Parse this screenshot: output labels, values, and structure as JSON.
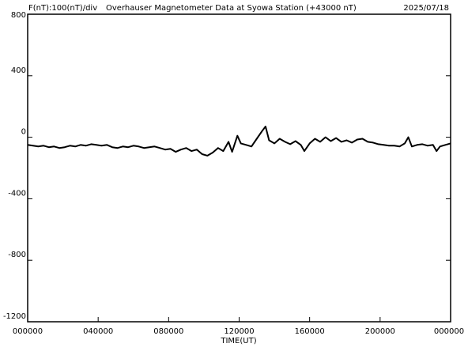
{
  "chart_data": {
    "type": "line",
    "title_left": "F(nT):100(nT)/div",
    "title": "Overhauser Magnetometer Data at Syowa Station (+43000 nT)",
    "date": "2025/07/18",
    "x_label": "TIME(UT)",
    "color": "#000000",
    "xlim": [
      0,
      24
    ],
    "xticks": [
      {
        "value": 0,
        "label": "000000"
      },
      {
        "value": 4,
        "label": "040000"
      },
      {
        "value": 8,
        "label": "080000"
      },
      {
        "value": 12,
        "label": "120000"
      },
      {
        "value": 16,
        "label": "160000"
      },
      {
        "value": 20,
        "label": "200000"
      },
      {
        "value": 24,
        "label": "000000"
      }
    ],
    "ylim": [
      -1200,
      800
    ],
    "yticks": [
      -1200,
      -800,
      -400,
      0,
      400,
      800
    ],
    "x": [
      0,
      0.3,
      0.6,
      0.9,
      1.2,
      1.5,
      1.8,
      2.1,
      2.4,
      2.7,
      3.0,
      3.3,
      3.6,
      3.9,
      4.2,
      4.5,
      4.8,
      5.1,
      5.4,
      5.7,
      6.0,
      6.3,
      6.6,
      6.9,
      7.2,
      7.5,
      7.8,
      8.1,
      8.4,
      8.7,
      9.0,
      9.3,
      9.6,
      9.9,
      10.2,
      10.5,
      10.8,
      11.1,
      11.4,
      11.6,
      11.9,
      12.1,
      12.4,
      12.7,
      13.0,
      13.3,
      13.5,
      13.7,
      14.0,
      14.3,
      14.6,
      14.9,
      15.2,
      15.5,
      15.7,
      16.0,
      16.3,
      16.6,
      16.9,
      17.2,
      17.5,
      17.8,
      18.1,
      18.4,
      18.7,
      19.0,
      19.3,
      19.6,
      19.9,
      20.2,
      20.5,
      20.8,
      21.1,
      21.4,
      21.6,
      21.8,
      22.1,
      22.4,
      22.7,
      23.0,
      23.2,
      23.4,
      23.7,
      24
    ],
    "values": [
      -50,
      -55,
      -60,
      -55,
      -65,
      -60,
      -70,
      -65,
      -55,
      -60,
      -50,
      -55,
      -45,
      -50,
      -55,
      -50,
      -65,
      -70,
      -60,
      -65,
      -55,
      -60,
      -70,
      -65,
      -60,
      -70,
      -80,
      -75,
      -95,
      -80,
      -70,
      -90,
      -80,
      -110,
      -120,
      -100,
      -70,
      -90,
      -30,
      -95,
      10,
      -40,
      -50,
      -60,
      -10,
      40,
      70,
      -20,
      -40,
      -10,
      -30,
      -45,
      -25,
      -50,
      -90,
      -40,
      -10,
      -30,
      0,
      -25,
      -5,
      -30,
      -20,
      -35,
      -15,
      -10,
      -30,
      -35,
      -45,
      -50,
      -55,
      -55,
      -60,
      -40,
      0,
      -60,
      -50,
      -45,
      -55,
      -50,
      -90,
      -60,
      -50,
      -40
    ]
  }
}
